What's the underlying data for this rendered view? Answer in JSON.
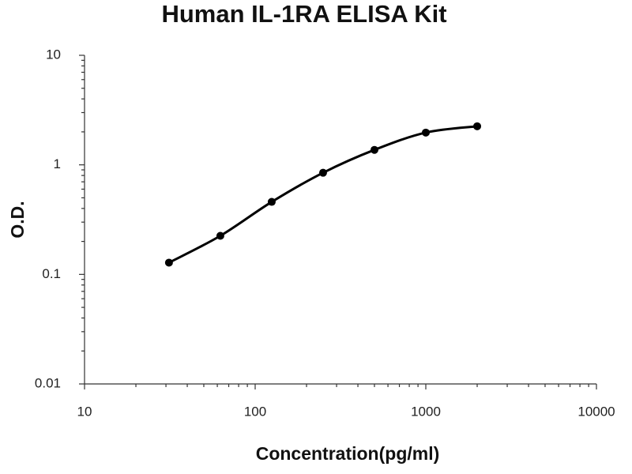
{
  "chart_data": {
    "type": "line",
    "title": "Human IL-1RA ELISA Kit",
    "x_label": "Concentration(pg/ml)",
    "y_label": "O.D.",
    "x": [
      31.25,
      62.5,
      125,
      250,
      500,
      1000,
      2000
    ],
    "values": [
      0.128,
      0.225,
      0.459,
      0.847,
      1.37,
      1.97,
      2.25
    ],
    "color": "#000000",
    "markers": true,
    "x_log": true,
    "y_log": true,
    "xlim": [
      10,
      10000
    ],
    "ylim": [
      0.01,
      10
    ],
    "xticks": [
      10,
      100,
      1000,
      10000
    ],
    "yticks": [
      0.01,
      0.1,
      1,
      10
    ],
    "grid": false
  }
}
